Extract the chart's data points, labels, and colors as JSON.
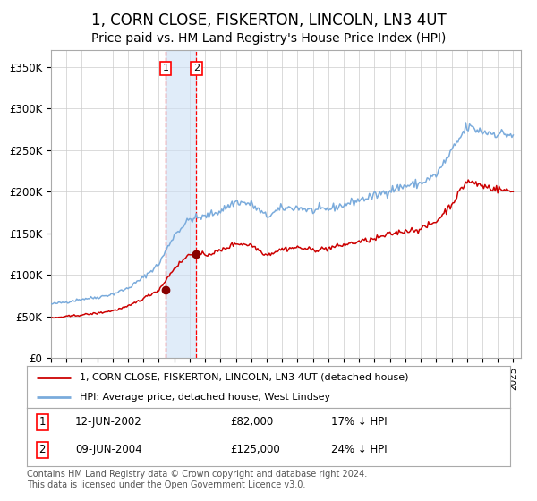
{
  "title": "1, CORN CLOSE, FISKERTON, LINCOLN, LN3 4UT",
  "subtitle": "Price paid vs. HM Land Registry's House Price Index (HPI)",
  "title_fontsize": 12,
  "subtitle_fontsize": 10,
  "ylabel_ticks": [
    "£0",
    "£50K",
    "£100K",
    "£150K",
    "£200K",
    "£250K",
    "£300K",
    "£350K"
  ],
  "ytick_values": [
    0,
    50000,
    100000,
    150000,
    200000,
    250000,
    300000,
    350000
  ],
  "ylim": [
    0,
    370000
  ],
  "xlim_start": 1995.0,
  "xlim_end": 2025.5,
  "sale1_date": 2002.44,
  "sale1_price": 82000,
  "sale1_label": "1",
  "sale2_date": 2004.44,
  "sale2_price": 125000,
  "sale2_label": "2",
  "hpi_line_color": "#7aabdc",
  "price_line_color": "#cc0000",
  "sale_marker_color": "#880000",
  "vline_color": "red",
  "shade_color": "#cce0f5",
  "legend1_label": "1, CORN CLOSE, FISKERTON, LINCOLN, LN3 4UT (detached house)",
  "legend2_label": "HPI: Average price, detached house, West Lindsey",
  "row1_date": "12-JUN-2002",
  "row1_price": "£82,000",
  "row1_hpi": "17% ↓ HPI",
  "row2_date": "09-JUN-2004",
  "row2_price": "£125,000",
  "row2_hpi": "24% ↓ HPI",
  "footer": "Contains HM Land Registry data © Crown copyright and database right 2024.\nThis data is licensed under the Open Government Licence v3.0.",
  "background_color": "#ffffff",
  "grid_color": "#cccccc"
}
